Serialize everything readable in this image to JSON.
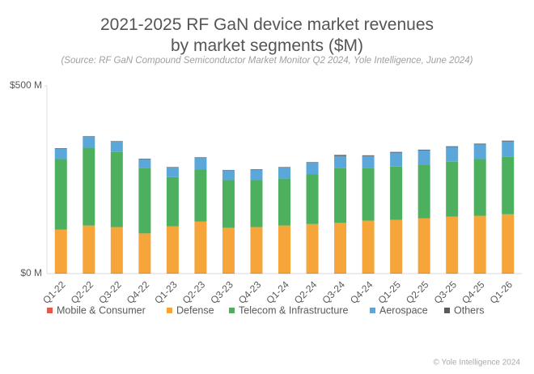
{
  "chart_data": {
    "type": "stacked_bar",
    "title": "2021-2025 RF GaN device market revenues by market segments ($M)",
    "subtitle": "(Source: RF GaN Compound Semiconductor Market Monitor Q2 2024, Yole Intelligence, June 2024)",
    "credit": "© Yole Intelligence 2024",
    "categories": [
      "Q1-22",
      "Q2-22",
      "Q3-22",
      "Q4-22",
      "Q1-23",
      "Q2-23",
      "Q3-23",
      "Q4-23",
      "Q1-24",
      "Q2-24",
      "Q3-24",
      "Q4-24",
      "Q1-25",
      "Q2-25",
      "Q3-25",
      "Q4-25",
      "Q1-26"
    ],
    "series": [
      {
        "name": "Mobile & Consumer",
        "color": "#e05a4f",
        "values": [
          1,
          1,
          1,
          1,
          1,
          1,
          1,
          1,
          1,
          1,
          1,
          1,
          1,
          1,
          1,
          1,
          1
        ]
      },
      {
        "name": "Defense",
        "color": "#f5a53a",
        "values": [
          116,
          127,
          123,
          106,
          125,
          138,
          121,
          123,
          127,
          131,
          134,
          140,
          142,
          146,
          151,
          153,
          157
        ]
      },
      {
        "name": "Telecom & Infrastructure",
        "color": "#4db05e",
        "values": [
          188,
          207,
          200,
          174,
          131,
          138,
          127,
          125,
          125,
          132,
          146,
          140,
          142,
          143,
          146,
          151,
          153
        ]
      },
      {
        "name": "Aerospace",
        "color": "#5ba7da",
        "values": [
          28,
          30,
          28,
          24,
          26,
          32,
          26,
          28,
          30,
          32,
          32,
          32,
          37,
          38,
          39,
          39,
          41
        ]
      },
      {
        "name": "Others",
        "color": "#5a5a5a",
        "values": [
          1,
          1,
          1,
          1,
          1,
          1,
          1,
          1,
          1,
          1,
          3,
          2,
          2,
          2,
          2,
          2,
          2
        ]
      }
    ],
    "ylim": [
      0,
      500
    ],
    "yticks": [
      {
        "value": 0,
        "label": "$0 M"
      },
      {
        "value": 500,
        "label": "$500 M"
      }
    ],
    "grid": false,
    "legend": "bottom"
  }
}
